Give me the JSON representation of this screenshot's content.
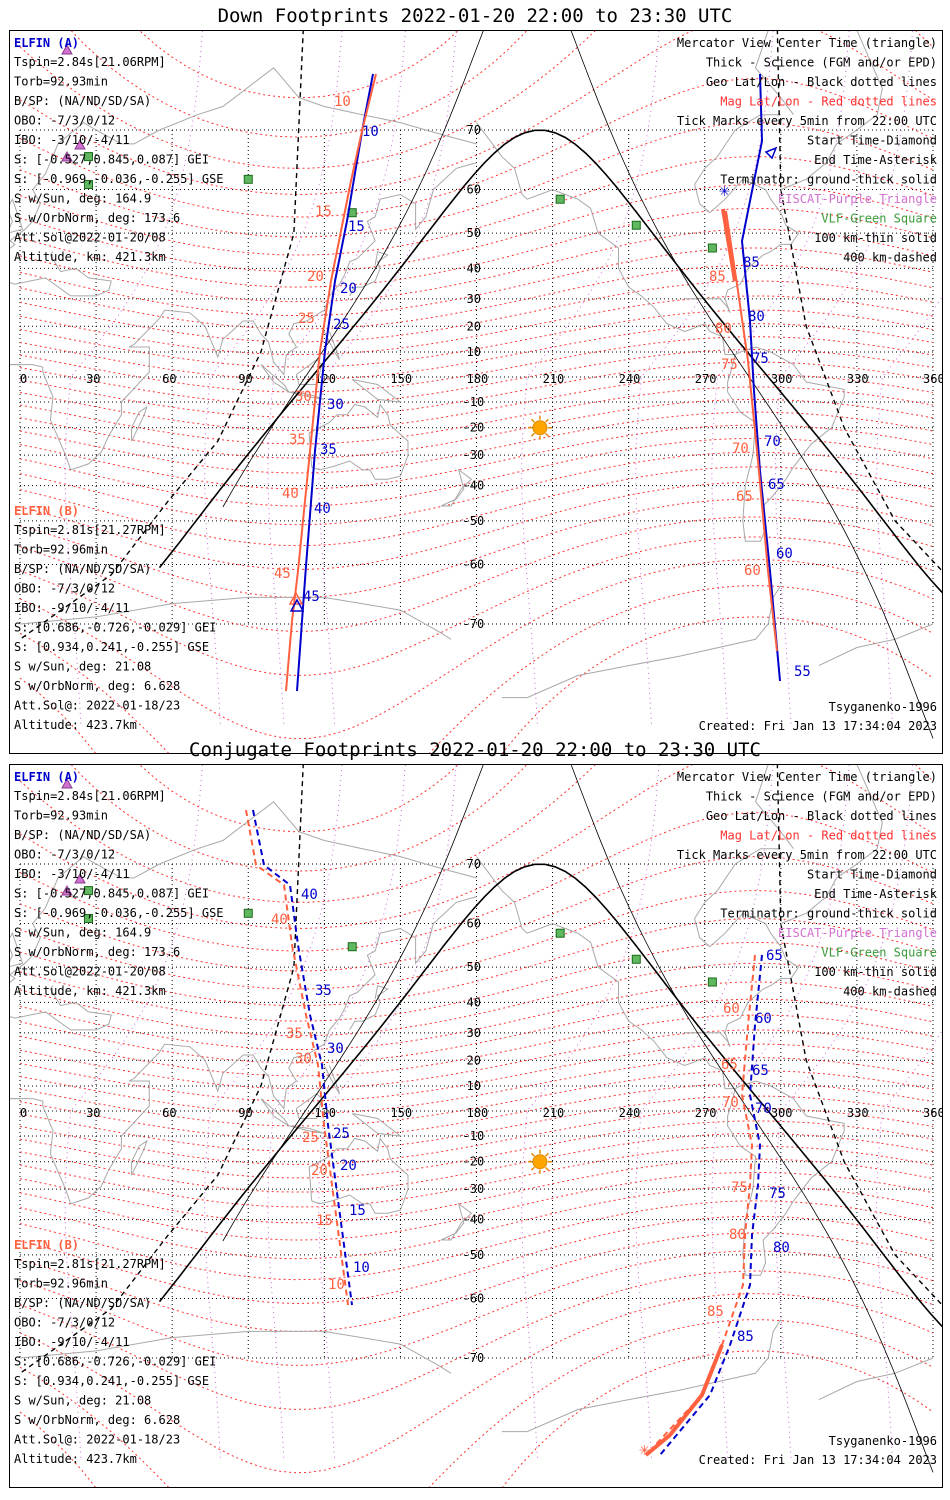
{
  "panels": [
    {
      "title": "Down Footprints 2022-01-20 22:00 to 23:30 UTC",
      "elfin_a": {
        "header": "ELFIN (A)",
        "lines": [
          "Tspin=2.84s[21.06RPM]",
          "Torb=92.93min",
          "B/SP: (NA/ND/SD/SA)",
          "OBO: -7/3/0/12",
          "IBO: -3/10/-4/11",
          "S: [-0.527,0.845,0.087] GEI",
          "S: [-0.969,-0.036,-0.255] GSE",
          "S w/Sun, deg: 164.9",
          "S w/OrbNorm, deg: 173.6",
          "Att.Sol@2022-01-20/08",
          "Altitude, km: 421.3km"
        ]
      },
      "elfin_b": {
        "header": "ELFIN (B)",
        "lines": [
          "Tspin=2.81s[21.27RPM]",
          "Torb=92.96min",
          "B/SP: (NA/ND/SD/SA)",
          "OBO: -7/3/0/12",
          "IBO: -9/10/-4/11",
          "S: [0.686,-0.726,-0.029] GEI",
          "S: [0.934,0.241,-0.255] GSE",
          "S w/Sun, deg: 21.08",
          "S w/OrbNorm, deg: 6.628",
          "Att.Sol@: 2022-01-18/23",
          "Altitude: 423.7km"
        ]
      },
      "track_labels": {
        "a_red": [
          "10",
          "15",
          "20",
          "25",
          "30",
          "35",
          "40",
          "45"
        ],
        "a_blue": [
          "10",
          "15",
          "20",
          "25",
          "30",
          "35",
          "40",
          "45"
        ],
        "b_red": [
          "85",
          "80",
          "75",
          "70",
          "65",
          "60"
        ],
        "b_blue": [
          "85",
          "80",
          "75",
          "70",
          "65",
          "60",
          "55"
        ]
      }
    },
    {
      "title": "Conjugate Footprints 2022-01-20 22:00 to 23:30 UTC",
      "elfin_a": {
        "header": "ELFIN (A)",
        "lines": [
          "Tspin=2.84s[21.06RPM]",
          "Torb=92.93min",
          "B/SP: (NA/ND/SD/SA)",
          "OBO: -7/3/0/12",
          "IBO: -3/10/-4/11",
          "S: [-0.527,0.845,0.087] GEI",
          "S: [-0.969,-0.036,-0.255] GSE",
          "S w/Sun, deg: 164.9",
          "S w/OrbNorm, deg: 173.6",
          "Att.Sol@2022-01-20/08",
          "Altitude, km: 421.3km"
        ]
      },
      "elfin_b": {
        "header": "ELFIN (B)",
        "lines": [
          "Tspin=2.81s[21.27RPM]",
          "Torb=92.96min",
          "B/SP: (NA/ND/SD/SA)",
          "OBO: -7/3/0/12",
          "IBO: -9/10/-4/11",
          "S: [0.686,-0.726,-0.029] GEI",
          "S: [0.934,0.241,-0.255] GSE",
          "S w/Sun, deg: 21.08",
          "S w/OrbNorm, deg: 6.628",
          "Att.Sol@: 2022-01-18/23",
          "Altitude: 423.7km"
        ]
      },
      "track_labels": {
        "a_red": [
          "40",
          "35",
          "30",
          "25",
          "20",
          "15",
          "10"
        ],
        "a_blue": [
          "40",
          "35",
          "30",
          "25",
          "20",
          "15",
          "10"
        ],
        "b_red": [
          "60",
          "65",
          "70",
          "75",
          "80",
          "85"
        ],
        "b_blue": [
          "65",
          "60",
          "65",
          "70",
          "75",
          "80",
          "85"
        ]
      }
    }
  ],
  "legend": [
    {
      "text": "Mercator View Center Time (triangle)",
      "color": "#000000"
    },
    {
      "text": "Thick - Science (FGM and/or EPD)",
      "color": "#000000"
    },
    {
      "text": "Geo Lat/Lon - Black dotted lines",
      "color": "#000000"
    },
    {
      "text": "Mag Lat/Lon - Red dotted lines",
      "color": "#ff3030"
    },
    {
      "text": "Tick Marks every 5min from 22:00 UTC",
      "color": "#000000"
    },
    {
      "text": "Start Time-Diamond",
      "color": "#000000"
    },
    {
      "text": "End Time-Asterisk",
      "color": "#000000"
    },
    {
      "text": "Terminator: ground-thick solid",
      "color": "#000000"
    },
    {
      "text": "EISCAT-Purple Triangle",
      "color": "#d070d0"
    },
    {
      "text": "VLF-Green Square",
      "color": "#3a9a3a"
    },
    {
      "text": "100 km-thin solid",
      "color": "#000000"
    },
    {
      "text": "400 km-dashed",
      "color": "#000000"
    }
  ],
  "lon_ticks": [
    "0",
    "30",
    "60",
    "90",
    "120",
    "150",
    "180",
    "210",
    "240",
    "270",
    "300",
    "330",
    "360"
  ],
  "lat_ticks": [
    "70",
    "60",
    "50",
    "40",
    "30",
    "20",
    "10",
    "-10",
    "-20",
    "-30",
    "-40",
    "-50",
    "-60",
    "-70"
  ],
  "footer_left": "Tsyganenko-1996",
  "footer_created": "Created: Fri Jan 13 17:34:04 2023",
  "colors": {
    "elfin_a": "#0000cc",
    "elfin_b": "#ff6040",
    "mag_grid": "#ff3030",
    "geo_grid": "#000000",
    "vlf": "#3a9a3a",
    "eiscat": "#d070d0",
    "sun": "#ffa500",
    "coast": "#a8a8a8"
  }
}
